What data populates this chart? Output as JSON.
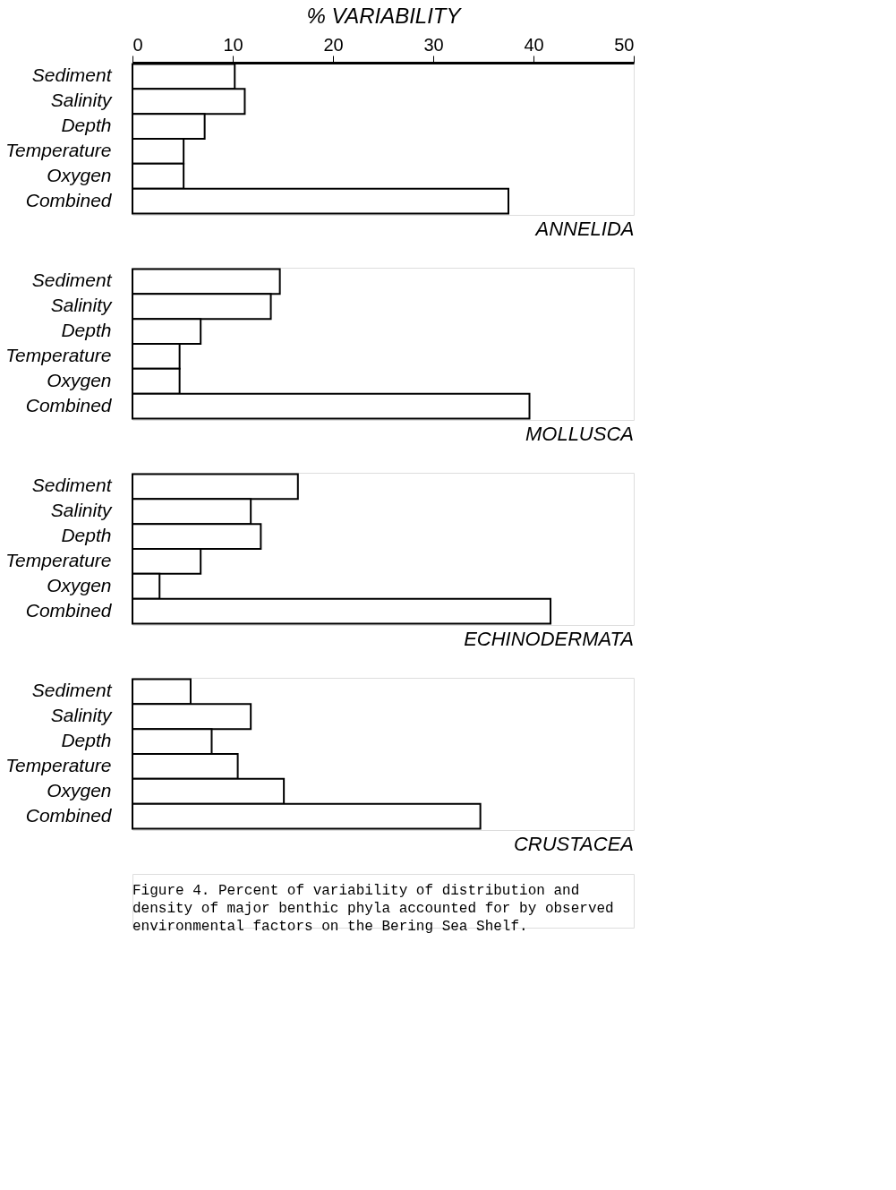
{
  "chart_data": [
    {
      "type": "bar",
      "orientation": "horizontal",
      "title": "ANNELIDA",
      "xlabel": "% VARIABILITY",
      "categories": [
        "Sediment",
        "Salinity",
        "Depth",
        "Temperature",
        "Oxygen",
        "Combined"
      ],
      "values": [
        10.2,
        11.2,
        7.2,
        5.1,
        5.1,
        37.5
      ],
      "color": "#ffffff",
      "xlim": [
        0,
        50
      ],
      "xticks": [
        0,
        10,
        20,
        30,
        40,
        50
      ]
    },
    {
      "type": "bar",
      "orientation": "horizontal",
      "title": "MOLLUSCA",
      "categories": [
        "Sediment",
        "Salinity",
        "Depth",
        "Temperature",
        "Oxygen",
        "Combined"
      ],
      "values": [
        14.7,
        13.8,
        6.8,
        4.7,
        4.7,
        39.6
      ],
      "color": "#ffffff",
      "xlim": [
        0,
        50
      ],
      "tick_labels": "y"
    },
    {
      "type": "bar",
      "orientation": "horizontal",
      "title": "ECHINODERMATA",
      "categories": [
        "Sediment",
        "Salinity",
        "Depth",
        "Temperature",
        "Oxygen",
        "Combined"
      ],
      "values": [
        16.5,
        11.8,
        12.8,
        6.8,
        2.7,
        41.7
      ],
      "color": "#ffffff",
      "xlim": [
        0,
        50
      ],
      "tick_labels": "y"
    },
    {
      "type": "bar",
      "orientation": "horizontal",
      "title": "CRUSTACEA",
      "categories": [
        "Sediment",
        "Salinity",
        "Depth",
        "Temperature",
        "Oxygen",
        "Combined"
      ],
      "values": [
        5.8,
        11.8,
        7.9,
        10.5,
        15.1,
        34.7
      ],
      "color": "#ffffff",
      "xlim": [
        0,
        50
      ],
      "tick_labels": "y",
      "annotations": [
        "Figure 4.  Percent of variability of distribution and density of major benthic phyla accounted for by observed environmental factors on the Bering Sea Shelf."
      ]
    }
  ]
}
